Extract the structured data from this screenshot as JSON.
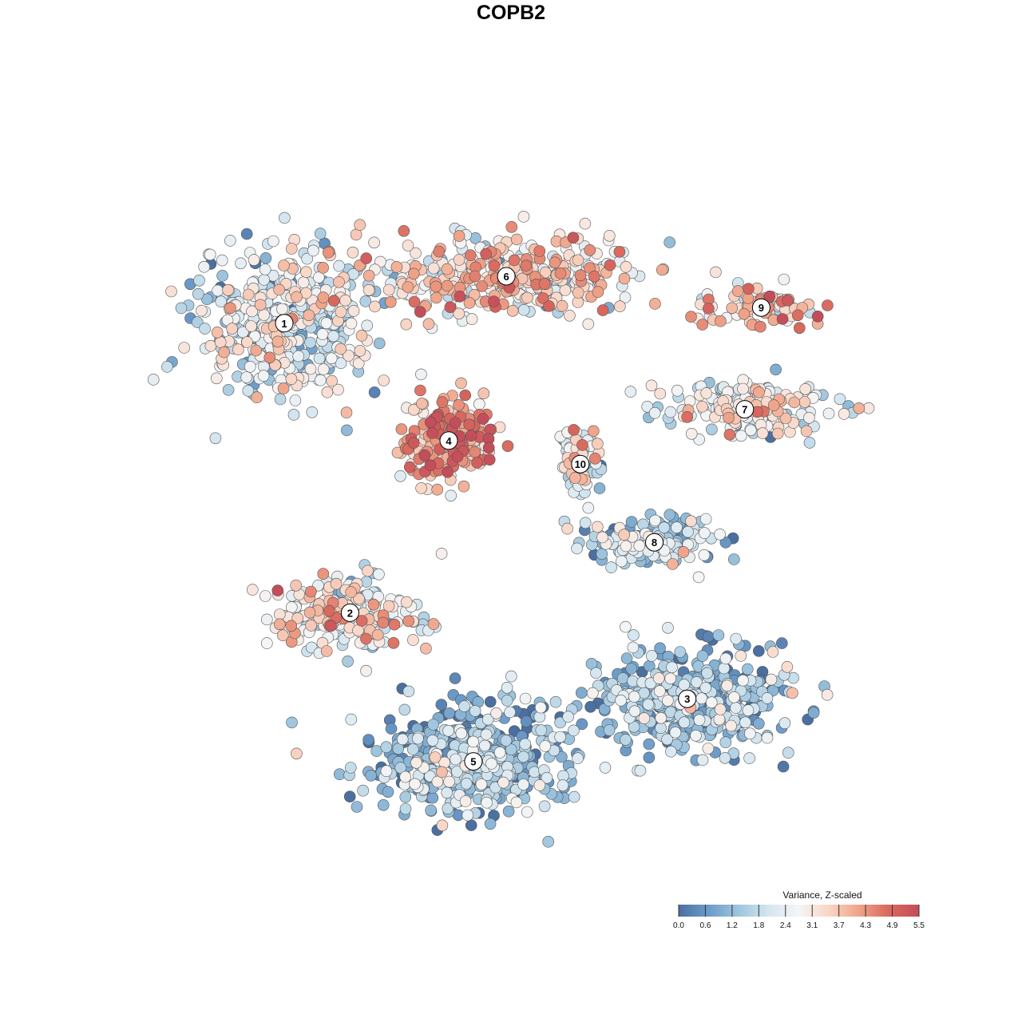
{
  "chart_data": {
    "type": "scatter",
    "title": "COPB2",
    "subtitle": "",
    "xlabel": "",
    "ylabel": "",
    "xlim": [
      0,
      1
    ],
    "ylim": [
      0,
      1
    ],
    "grid": false,
    "legend": {
      "title": "Variance, Z-scaled",
      "placement": "bottom-right",
      "ticks": [
        "0.0",
        "0.6",
        "1.2",
        "1.8",
        "2.4",
        "3.1",
        "3.7",
        "4.3",
        "4.9",
        "5.5"
      ],
      "range": [
        0.0,
        5.5
      ],
      "colors": [
        "#4a6fa0",
        "#6c9cc9",
        "#9fc6de",
        "#d5e6f0",
        "#f5f5f5",
        "#f9d6c6",
        "#efa388",
        "#d9685e",
        "#c44d5a"
      ]
    },
    "clusters": [
      {
        "label": "1",
        "x": 0.2,
        "y": 0.74,
        "value": 2.2,
        "count": 420
      },
      {
        "label": "6",
        "x": 0.47,
        "y": 0.8,
        "value": 3.2,
        "count": 380
      },
      {
        "label": "9",
        "x": 0.78,
        "y": 0.76,
        "value": 3.6,
        "count": 90
      },
      {
        "label": "7",
        "x": 0.76,
        "y": 0.63,
        "value": 2.6,
        "count": 180
      },
      {
        "label": "4",
        "x": 0.4,
        "y": 0.59,
        "value": 4.0,
        "count": 200
      },
      {
        "label": "10",
        "x": 0.56,
        "y": 0.56,
        "value": 2.3,
        "count": 90
      },
      {
        "label": "8",
        "x": 0.65,
        "y": 0.46,
        "value": 1.6,
        "count": 180
      },
      {
        "label": "2",
        "x": 0.28,
        "y": 0.37,
        "value": 2.7,
        "count": 220
      },
      {
        "label": "3",
        "x": 0.69,
        "y": 0.26,
        "value": 1.2,
        "count": 420
      },
      {
        "label": "5",
        "x": 0.43,
        "y": 0.18,
        "value": 1.1,
        "count": 480
      }
    ]
  }
}
